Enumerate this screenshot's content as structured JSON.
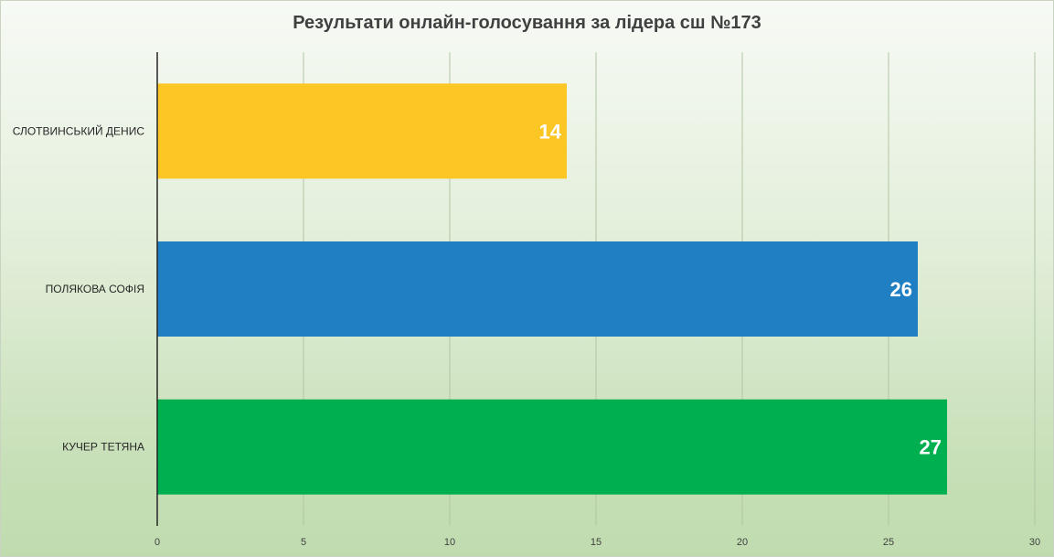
{
  "chart_data": {
    "type": "bar",
    "orientation": "horizontal",
    "title": "Результати онлайн-голосування за лідера сш №173",
    "categories": [
      "СЛОТВИНСЬКИЙ ДЕНИС",
      "ПОЛЯКОВА СОФІЯ",
      "КУЧЕР ТЕТЯНА"
    ],
    "values": [
      14,
      26,
      27
    ],
    "colors": [
      "#fcc624",
      "#1f7fc2",
      "#00b050"
    ],
    "data_labels": [
      "14",
      "26",
      "27"
    ],
    "xlim": [
      0,
      30
    ],
    "x_ticks": [
      "0",
      "5",
      "10",
      "15",
      "20",
      "25",
      "30"
    ],
    "grid": true,
    "legend": "none"
  }
}
